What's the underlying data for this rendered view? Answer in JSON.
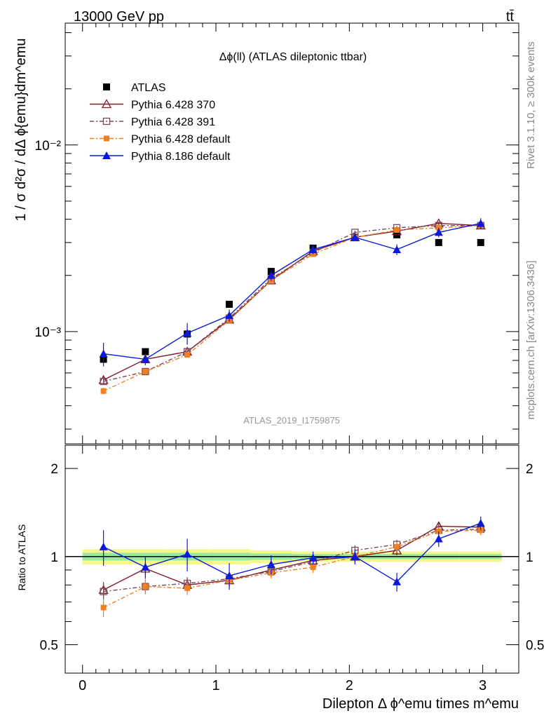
{
  "header": {
    "energy_label": "13000 GeV pp",
    "process_label": "tt̄"
  },
  "side": {
    "rivet_label": "Rivet 3.1.10, ≥ 300k events",
    "mcplots_label": "mcplots.cern.ch [arXiv:1306.3436]"
  },
  "chart_data": {
    "type": "line",
    "title": "Δϕ(ll) (ATLAS dileptonic ttbar)",
    "analysis_id": "ATLAS_2019_I1759875",
    "ylabel": "1 / σ  d²σ / dΔ ϕ{emu}dm^emu",
    "ratio_ylabel": "Ratio to ATLAS",
    "xlabel": "Dilepton Δ ϕ^emu times m^emu",
    "xlim": [
      -0.13,
      3.27
    ],
    "ylim": [
      0.00025,
      0.045
    ],
    "ratio_ylim": [
      0.4,
      2.4
    ],
    "x_ticks": [
      "0",
      "1",
      "2",
      "3"
    ],
    "y_major_ticks": [
      "10⁻³",
      "10⁻²"
    ],
    "ratio_ticks": [
      "0.5",
      "1",
      "2"
    ],
    "x": [
      0.157,
      0.471,
      0.785,
      1.1,
      1.414,
      1.728,
      2.042,
      2.356,
      2.67,
      2.985
    ],
    "series": [
      {
        "name": "ATLAS",
        "color": "#000000",
        "marker": "filled-square",
        "values": [
          0.00071,
          0.00078,
          0.00097,
          0.0014,
          0.0021,
          0.0028,
          0.0032,
          0.0033,
          0.003,
          0.003
        ],
        "ratio": [
          1,
          1,
          1,
          1,
          1,
          1,
          1,
          1,
          1,
          1
        ],
        "band_inner": [
          0.03,
          0.03,
          0.03,
          0.03,
          0.025,
          0.02,
          0.02,
          0.02,
          0.02,
          0.02
        ],
        "band_outer": [
          0.06,
          0.06,
          0.06,
          0.06,
          0.05,
          0.04,
          0.04,
          0.04,
          0.04,
          0.04
        ]
      },
      {
        "name": "Pythia 6.428 370",
        "color": "#7f1a2b",
        "marker": "open-triangle",
        "dash": "",
        "values": [
          0.00055,
          0.00071,
          0.00078,
          0.00116,
          0.00188,
          0.0027,
          0.0032,
          0.00345,
          0.0038,
          0.0037
        ],
        "ratio": [
          0.77,
          0.91,
          0.8,
          0.83,
          0.9,
          0.97,
          1.0,
          1.05,
          1.27,
          1.26
        ],
        "err": [
          2e-05,
          2e-05,
          2e-05,
          3e-05,
          4e-05,
          6e-05,
          7e-05,
          7e-05,
          8e-05,
          8e-05
        ]
      },
      {
        "name": "Pythia 6.428 391",
        "color": "#7a4a58",
        "marker": "open-square",
        "dash": "6,3,2,3",
        "values": [
          0.00054,
          0.00061,
          0.00078,
          0.00118,
          0.00192,
          0.00265,
          0.0034,
          0.0036,
          0.0037,
          0.0037
        ],
        "ratio": [
          0.76,
          0.79,
          0.81,
          0.84,
          0.89,
          0.96,
          1.05,
          1.1,
          1.23,
          1.24
        ],
        "err": [
          2e-05,
          2e-05,
          2e-05,
          3e-05,
          4e-05,
          6e-05,
          7e-05,
          7e-05,
          8e-05,
          8e-05
        ]
      },
      {
        "name": "Pythia 6.428 default",
        "color": "#f08020",
        "marker": "filled-square-small",
        "dash": "6,3,2,3",
        "values": [
          0.00048,
          0.00061,
          0.00075,
          0.00115,
          0.00188,
          0.0026,
          0.0032,
          0.0035,
          0.0036,
          0.0037
        ],
        "ratio": [
          0.67,
          0.79,
          0.78,
          0.83,
          0.88,
          0.92,
          1.0,
          1.08,
          1.22,
          1.23
        ],
        "err": [
          2e-05,
          2e-05,
          2e-05,
          3e-05,
          4e-05,
          6e-05,
          7e-05,
          7e-05,
          8e-05,
          8e-05
        ]
      },
      {
        "name": "Pythia 8.186 default",
        "color": "#0a1ad8",
        "marker": "filled-triangle",
        "dash": "",
        "values": [
          0.00076,
          0.00071,
          0.00098,
          0.00122,
          0.002,
          0.00275,
          0.0032,
          0.00275,
          0.0034,
          0.0038
        ],
        "ratio": [
          1.08,
          0.92,
          1.02,
          0.86,
          0.94,
          0.99,
          1.0,
          0.82,
          1.15,
          1.3
        ],
        "err": [
          0.00011,
          5e-05,
          0.00013,
          9e-05,
          0.00013,
          0.00015,
          0.00012,
          0.00018,
          0.0002,
          0.00025
        ],
        "ratio_err": [
          0.15,
          0.08,
          0.13,
          0.09,
          0.07,
          0.05,
          0.06,
          0.06,
          0.07,
          0.07
        ]
      }
    ]
  }
}
